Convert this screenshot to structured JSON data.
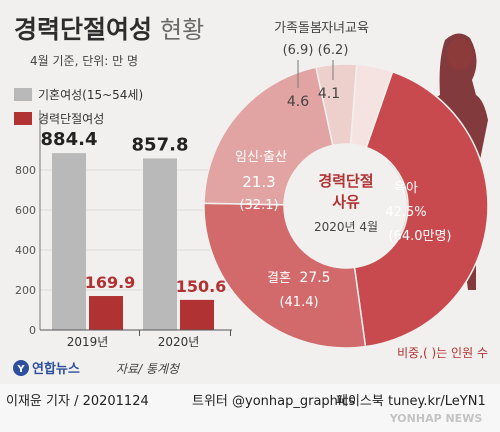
{
  "header": {
    "title_bold": "경력단절여성",
    "title_light": "현황",
    "subtitle": "4월 기준, 단위: 만 명"
  },
  "legend": [
    {
      "label": "기혼여성(15~54세)",
      "color": "#b9b9b9"
    },
    {
      "label": "경력단절여성",
      "color": "#b03232"
    }
  ],
  "footer": {
    "source": "자료/ 통계청",
    "logo": "연합뉴스",
    "byline": "이재윤 기자 / 20201124",
    "twitter": "트위터 @yonhap_graphics",
    "facebook": "페이스북 tuney.kr/LeYN1",
    "watermark": "YONHAP NEWS"
  },
  "donut_center": {
    "title_line1": "경력단절",
    "title_line2": "사유",
    "date": "2020년 4월"
  },
  "donut_note": "비중,( )는 인원 수",
  "colors": {
    "married": "#b9b9b9",
    "career_break": "#b03232",
    "childcare": "#c94a4e",
    "marriage": "#d26a6c",
    "pregnancy": "#e2a4a2",
    "family_care": "#edd0cc",
    "child_edu": "#f4e3e0"
  },
  "chart_data": [
    {
      "type": "bar",
      "categories": [
        "2019년",
        "2020년"
      ],
      "series": [
        {
          "name": "기혼여성(15~54세)",
          "values": [
            884.4,
            857.8
          ],
          "labels": [
            "884.4",
            "857.8"
          ]
        },
        {
          "name": "경력단절여성",
          "values": [
            169.9,
            150.6
          ],
          "labels": [
            "169.9",
            "150.6"
          ]
        }
      ],
      "ylim": [
        0,
        1000
      ],
      "yticks": [
        0,
        200,
        400,
        600,
        800
      ],
      "ytick_labels": [
        "0",
        "200",
        "400",
        "600",
        "800"
      ]
    },
    {
      "type": "pie",
      "title": "경력단절 사유",
      "slices": [
        {
          "name": "육아",
          "value": 42.5,
          "value_label": "42.5%",
          "count_label": "(64.0만명)"
        },
        {
          "name": "결혼",
          "value": 27.5,
          "value_label": "27.5",
          "count_label": "(41.4)"
        },
        {
          "name": "임신·출산",
          "value": 21.3,
          "value_label": "21.3",
          "count_label": "(32.1)"
        },
        {
          "name": "가족돌봄",
          "value": 4.6,
          "value_label": "4.6",
          "count_label": "(6.9)"
        },
        {
          "name": "자녀교육",
          "value": 4.1,
          "value_label": "4.1",
          "count_label": "(6.2)"
        }
      ]
    }
  ]
}
